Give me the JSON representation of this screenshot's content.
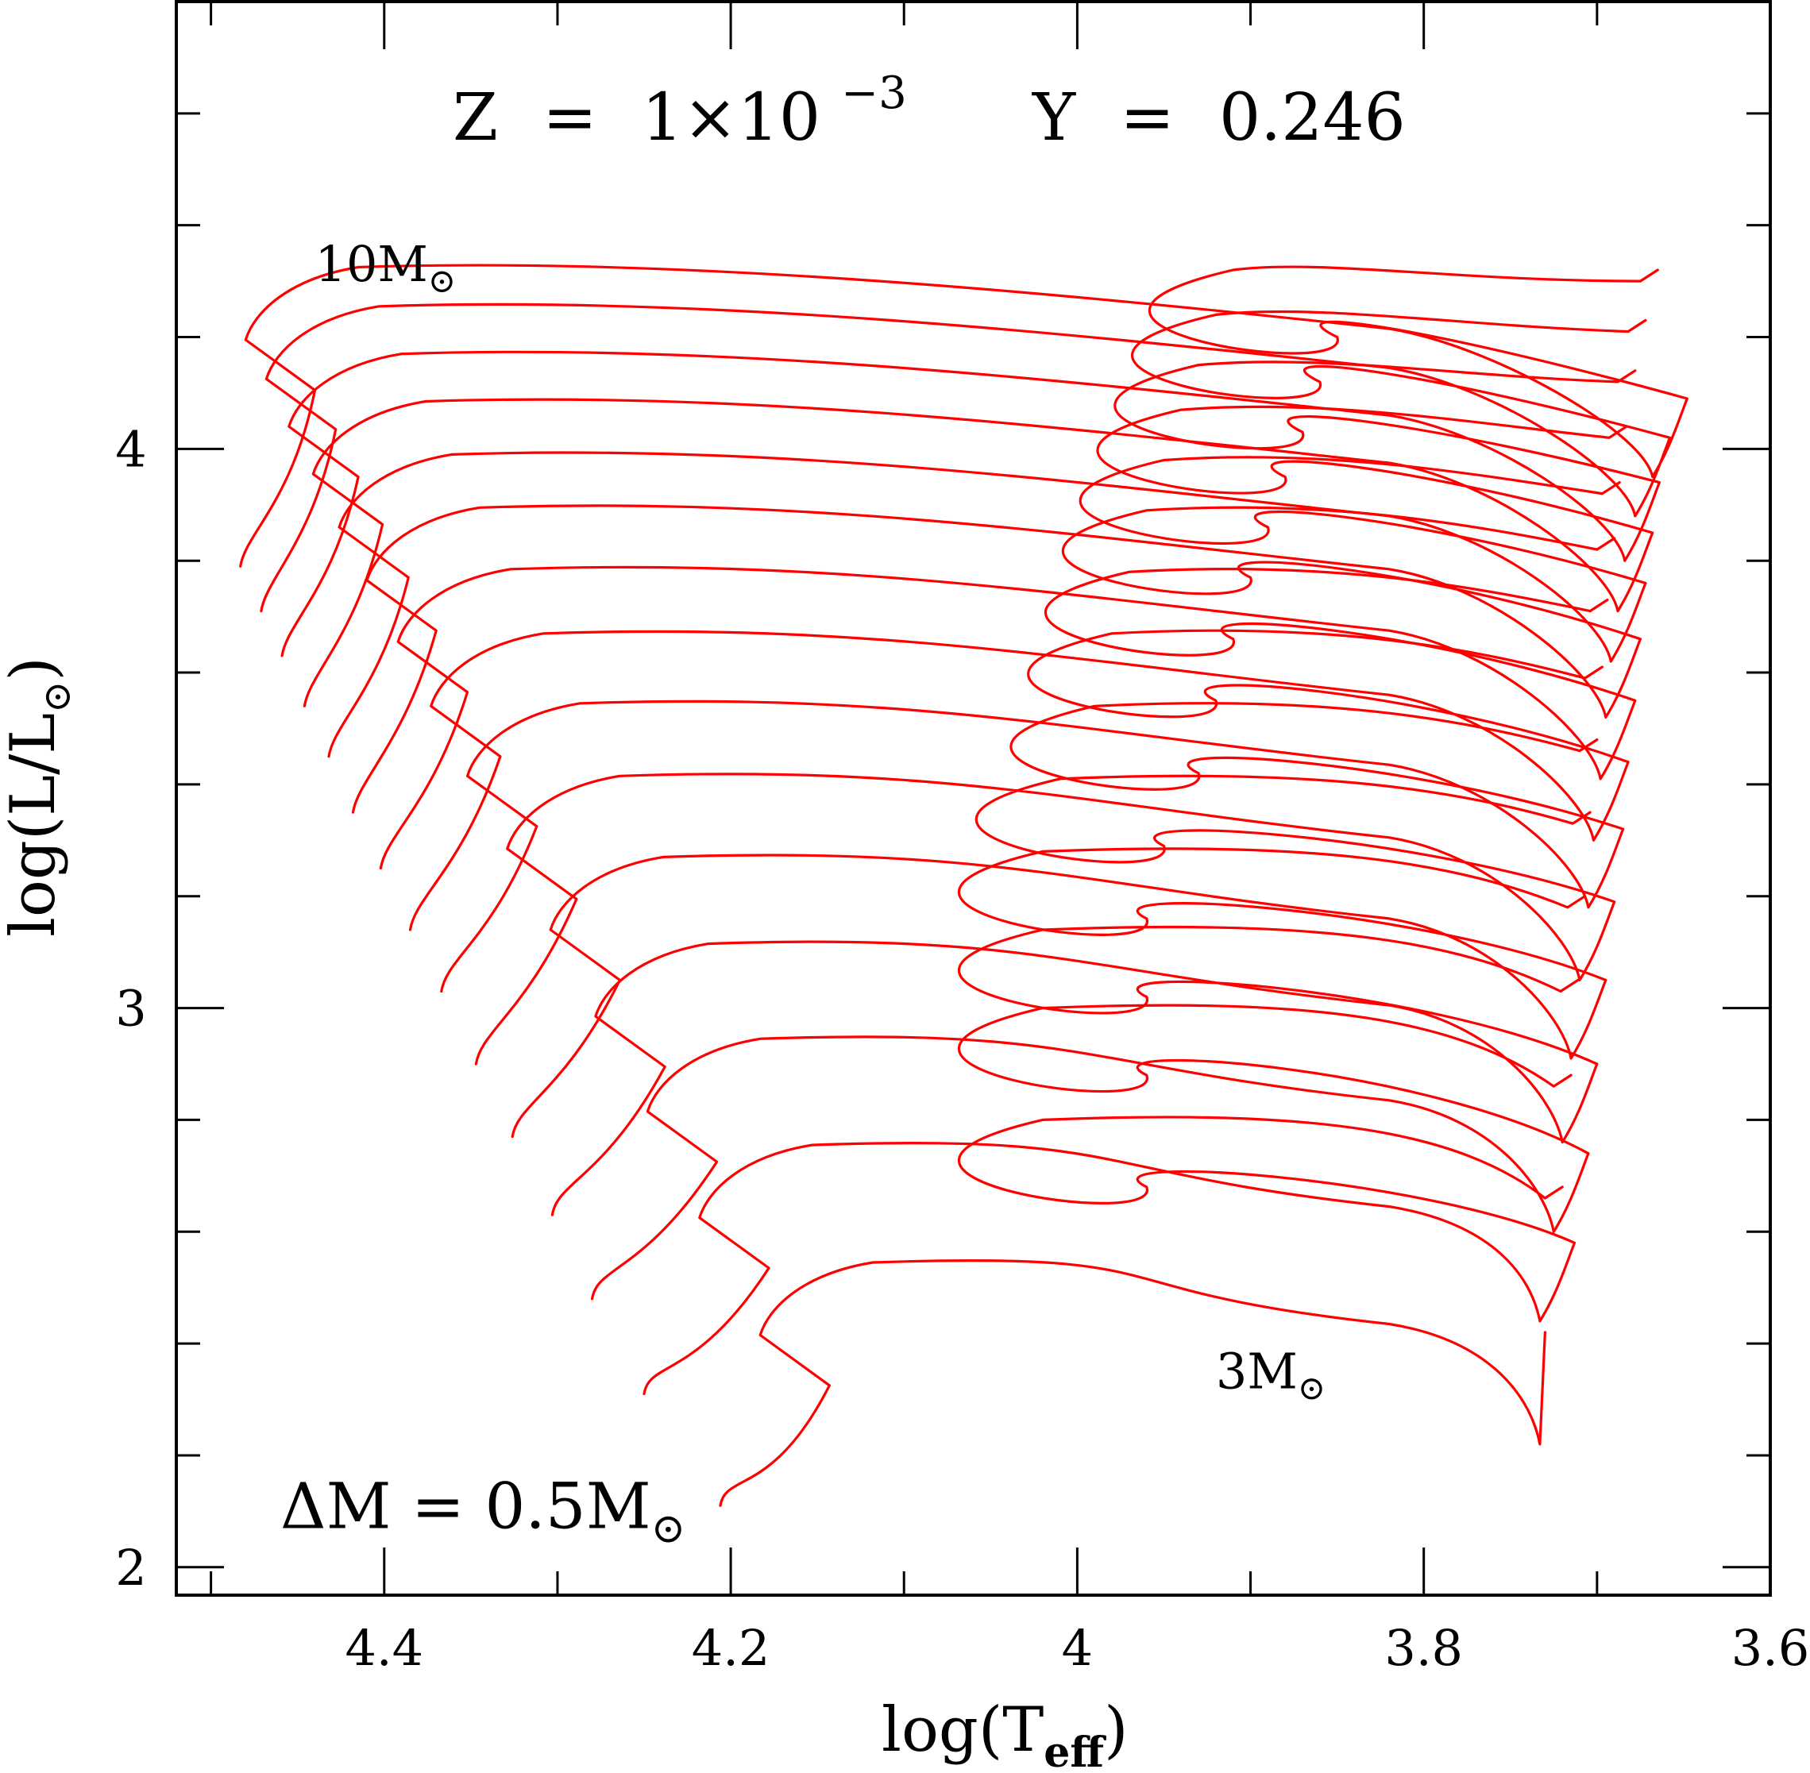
{
  "chart_data": {
    "type": "line",
    "title": {
      "z_label": "Z",
      "equals": "=",
      "z_mantissa": "1×10",
      "z_exponent": "−3",
      "y_label": "Y",
      "y_value": "0.246"
    },
    "xlabel": {
      "main": "log(T",
      "sub": "eff",
      "close": ")"
    },
    "ylabel": {
      "main": "log(L/L",
      "sub": "⊙",
      "close": ")"
    },
    "x_reversed": true,
    "xlim": [
      4.52,
      3.6
    ],
    "ylim": [
      1.95,
      4.8
    ],
    "x_ticks_major": [
      4.4,
      4.2,
      4.0,
      3.8,
      3.6
    ],
    "x_tick_labels": [
      "4.4",
      "4.2",
      "4",
      "3.8",
      "3.6"
    ],
    "x_ticks_minor": [
      4.5,
      4.3,
      4.1,
      3.9,
      3.7
    ],
    "y_ticks_major": [
      2,
      3,
      4
    ],
    "y_tick_labels": [
      "2",
      "3",
      "4"
    ],
    "y_ticks_minor": [
      2.2,
      2.4,
      2.6,
      2.8,
      3.2,
      3.4,
      3.6,
      3.8,
      4.2,
      4.4,
      4.6
    ],
    "grid": false,
    "legend": "none",
    "colors": {
      "tracks": "#ff0000",
      "axes": "#000000"
    },
    "annotations": [
      {
        "id": "top-mass",
        "text": "10M",
        "sub": "⊙",
        "x": 4.44,
        "y": 4.3
      },
      {
        "id": "bottom-mass",
        "text": "3M",
        "sub": "⊙",
        "x": 3.92,
        "y": 2.32
      },
      {
        "id": "mass-step",
        "text": "ΔM  =  0.5M",
        "sub": "⊙",
        "x": 4.46,
        "y": 2.07
      }
    ],
    "series": [
      {
        "mass": 3.0,
        "zams": [
          4.206,
          2.11
        ],
        "hook": [
          4.148,
          2.345
        ],
        "tip": [
          3.73,
          2.42
        ],
        "rgb_base": [
          3.733,
          2.22
        ],
        "loop": null
      },
      {
        "mass": 3.5,
        "zams": [
          4.25,
          2.31
        ],
        "hook": [
          4.183,
          2.555
        ],
        "tip": [
          3.72,
          2.68
        ],
        "rgb_base": [
          3.733,
          2.44
        ],
        "loop": [
          3.96,
          2.68
        ]
      },
      {
        "mass": 4.0,
        "zams": [
          4.28,
          2.48
        ],
        "hook": [
          4.213,
          2.745
        ],
        "tip": [
          3.715,
          2.88
        ],
        "rgb_base": [
          3.725,
          2.6
        ],
        "loop": [
          3.96,
          2.88
        ]
      },
      {
        "mass": 4.5,
        "zams": [
          4.303,
          2.63
        ],
        "hook": [
          4.243,
          2.915
        ],
        "tip": [
          3.711,
          3.05
        ],
        "rgb_base": [
          3.72,
          2.76
        ],
        "loop": [
          3.96,
          3.02
        ]
      },
      {
        "mass": 5.0,
        "zams": [
          4.326,
          2.77
        ],
        "hook": [
          4.269,
          3.07
        ],
        "tip": [
          3.707,
          3.2
        ],
        "rgb_base": [
          3.715,
          2.91
        ],
        "loop": [
          3.96,
          3.16
        ]
      },
      {
        "mass": 5.5,
        "zams": [
          4.347,
          2.9
        ],
        "hook": [
          4.294,
          3.215
        ],
        "tip": [
          3.704,
          3.35
        ],
        "rgb_base": [
          3.71,
          3.05
        ],
        "loop": [
          3.95,
          3.29
        ]
      },
      {
        "mass": 6.0,
        "zams": [
          4.367,
          3.03
        ],
        "hook": [
          4.317,
          3.345
        ],
        "tip": [
          3.7,
          3.48
        ],
        "rgb_base": [
          3.705,
          3.18
        ],
        "loop": [
          3.93,
          3.42
        ]
      },
      {
        "mass": 6.5,
        "zams": [
          4.385,
          3.14
        ],
        "hook": [
          4.338,
          3.47
        ],
        "tip": [
          3.697,
          3.61
        ],
        "rgb_base": [
          3.702,
          3.3
        ],
        "loop": [
          3.92,
          3.55
        ]
      },
      {
        "mass": 7.0,
        "zams": [
          4.402,
          3.25
        ],
        "hook": [
          4.357,
          3.585
        ],
        "tip": [
          3.694,
          3.73
        ],
        "rgb_base": [
          3.698,
          3.41
        ],
        "loop": [
          3.91,
          3.66
        ]
      },
      {
        "mass": 7.5,
        "zams": [
          4.418,
          3.35
        ],
        "hook": [
          4.375,
          3.695
        ],
        "tip": [
          3.69,
          3.84
        ],
        "rgb_base": [
          3.695,
          3.52
        ],
        "loop": [
          3.9,
          3.77
        ]
      },
      {
        "mass": 8.0,
        "zams": [
          4.432,
          3.45
        ],
        "hook": [
          4.391,
          3.79
        ],
        "tip": [
          3.687,
          3.94
        ],
        "rgb_base": [
          3.692,
          3.62
        ],
        "loop": [
          3.89,
          3.86
        ]
      },
      {
        "mass": 8.5,
        "zams": [
          4.446,
          3.54
        ],
        "hook": [
          4.406,
          3.885
        ],
        "tip": [
          3.683,
          4.04
        ],
        "rgb_base": [
          3.688,
          3.71
        ],
        "loop": [
          3.88,
          3.95
        ]
      },
      {
        "mass": 9.0,
        "zams": [
          4.459,
          3.63
        ],
        "hook": [
          4.42,
          3.97
        ],
        "tip": [
          3.678,
          4.14
        ],
        "rgb_base": [
          3.684,
          3.8
        ],
        "loop": [
          3.87,
          4.03
        ]
      },
      {
        "mass": 9.5,
        "zams": [
          4.471,
          3.71
        ],
        "hook": [
          4.433,
          4.055
        ],
        "tip": [
          3.672,
          4.23
        ],
        "rgb_base": [
          3.678,
          3.88
        ],
        "loop": [
          3.86,
          4.12
        ]
      },
      {
        "mass": 10.0,
        "zams": [
          4.483,
          3.79
        ],
        "hook": [
          4.445,
          4.125
        ],
        "tip": [
          3.665,
          4.32
        ],
        "rgb_base": [
          3.668,
          3.95
        ],
        "loop": [
          3.85,
          4.2
        ]
      }
    ]
  }
}
